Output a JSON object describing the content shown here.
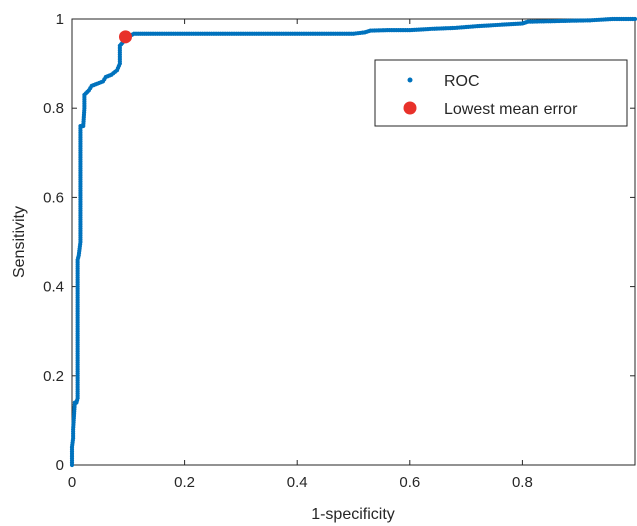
{
  "chart_data": {
    "type": "scatter",
    "title": "",
    "xlabel": "1-specificity",
    "ylabel": "Sensitivity",
    "xlim": [
      0,
      1
    ],
    "ylim": [
      0,
      1
    ],
    "grid": false,
    "legend_position": "top-right",
    "xticks": [
      "0",
      "0.2",
      "0.4",
      "0.6",
      "0.8"
    ],
    "yticks": [
      "0",
      "0.2",
      "0.4",
      "0.6",
      "0.8",
      "1"
    ],
    "series": [
      {
        "name": "ROC",
        "color": "#0072BD",
        "marker": "dot",
        "points": [
          [
            0.0,
            0.0
          ],
          [
            0.0,
            0.02
          ],
          [
            0.0,
            0.04
          ],
          [
            0.002,
            0.06
          ],
          [
            0.002,
            0.08
          ],
          [
            0.003,
            0.1
          ],
          [
            0.004,
            0.12
          ],
          [
            0.005,
            0.14
          ],
          [
            0.008,
            0.14
          ],
          [
            0.01,
            0.15
          ],
          [
            0.01,
            0.18
          ],
          [
            0.01,
            0.22
          ],
          [
            0.01,
            0.26
          ],
          [
            0.01,
            0.3
          ],
          [
            0.01,
            0.34
          ],
          [
            0.01,
            0.38
          ],
          [
            0.01,
            0.42
          ],
          [
            0.01,
            0.46
          ],
          [
            0.012,
            0.47
          ],
          [
            0.015,
            0.5
          ],
          [
            0.015,
            0.55
          ],
          [
            0.015,
            0.6
          ],
          [
            0.015,
            0.65
          ],
          [
            0.015,
            0.7
          ],
          [
            0.015,
            0.76
          ],
          [
            0.02,
            0.76
          ],
          [
            0.022,
            0.8
          ],
          [
            0.022,
            0.83
          ],
          [
            0.03,
            0.84
          ],
          [
            0.035,
            0.85
          ],
          [
            0.045,
            0.855
          ],
          [
            0.055,
            0.86
          ],
          [
            0.06,
            0.87
          ],
          [
            0.07,
            0.875
          ],
          [
            0.08,
            0.885
          ],
          [
            0.085,
            0.9
          ],
          [
            0.085,
            0.94
          ],
          [
            0.092,
            0.95
          ],
          [
            0.1,
            0.96
          ],
          [
            0.11,
            0.967
          ],
          [
            0.14,
            0.967
          ],
          [
            0.18,
            0.967
          ],
          [
            0.22,
            0.967
          ],
          [
            0.26,
            0.967
          ],
          [
            0.3,
            0.967
          ],
          [
            0.34,
            0.967
          ],
          [
            0.38,
            0.967
          ],
          [
            0.42,
            0.967
          ],
          [
            0.46,
            0.967
          ],
          [
            0.5,
            0.967
          ],
          [
            0.52,
            0.97
          ],
          [
            0.53,
            0.974
          ],
          [
            0.56,
            0.975
          ],
          [
            0.6,
            0.975
          ],
          [
            0.64,
            0.978
          ],
          [
            0.68,
            0.98
          ],
          [
            0.72,
            0.984
          ],
          [
            0.76,
            0.987
          ],
          [
            0.8,
            0.99
          ],
          [
            0.81,
            0.994
          ],
          [
            0.85,
            0.995
          ],
          [
            0.88,
            0.996
          ],
          [
            0.92,
            0.997
          ],
          [
            0.96,
            1.0
          ],
          [
            1.0,
            1.0
          ]
        ]
      },
      {
        "name": "Lowest mean error",
        "color": "#E8312A",
        "marker": "large-dot",
        "points": [
          [
            0.095,
            0.96
          ]
        ]
      }
    ]
  }
}
